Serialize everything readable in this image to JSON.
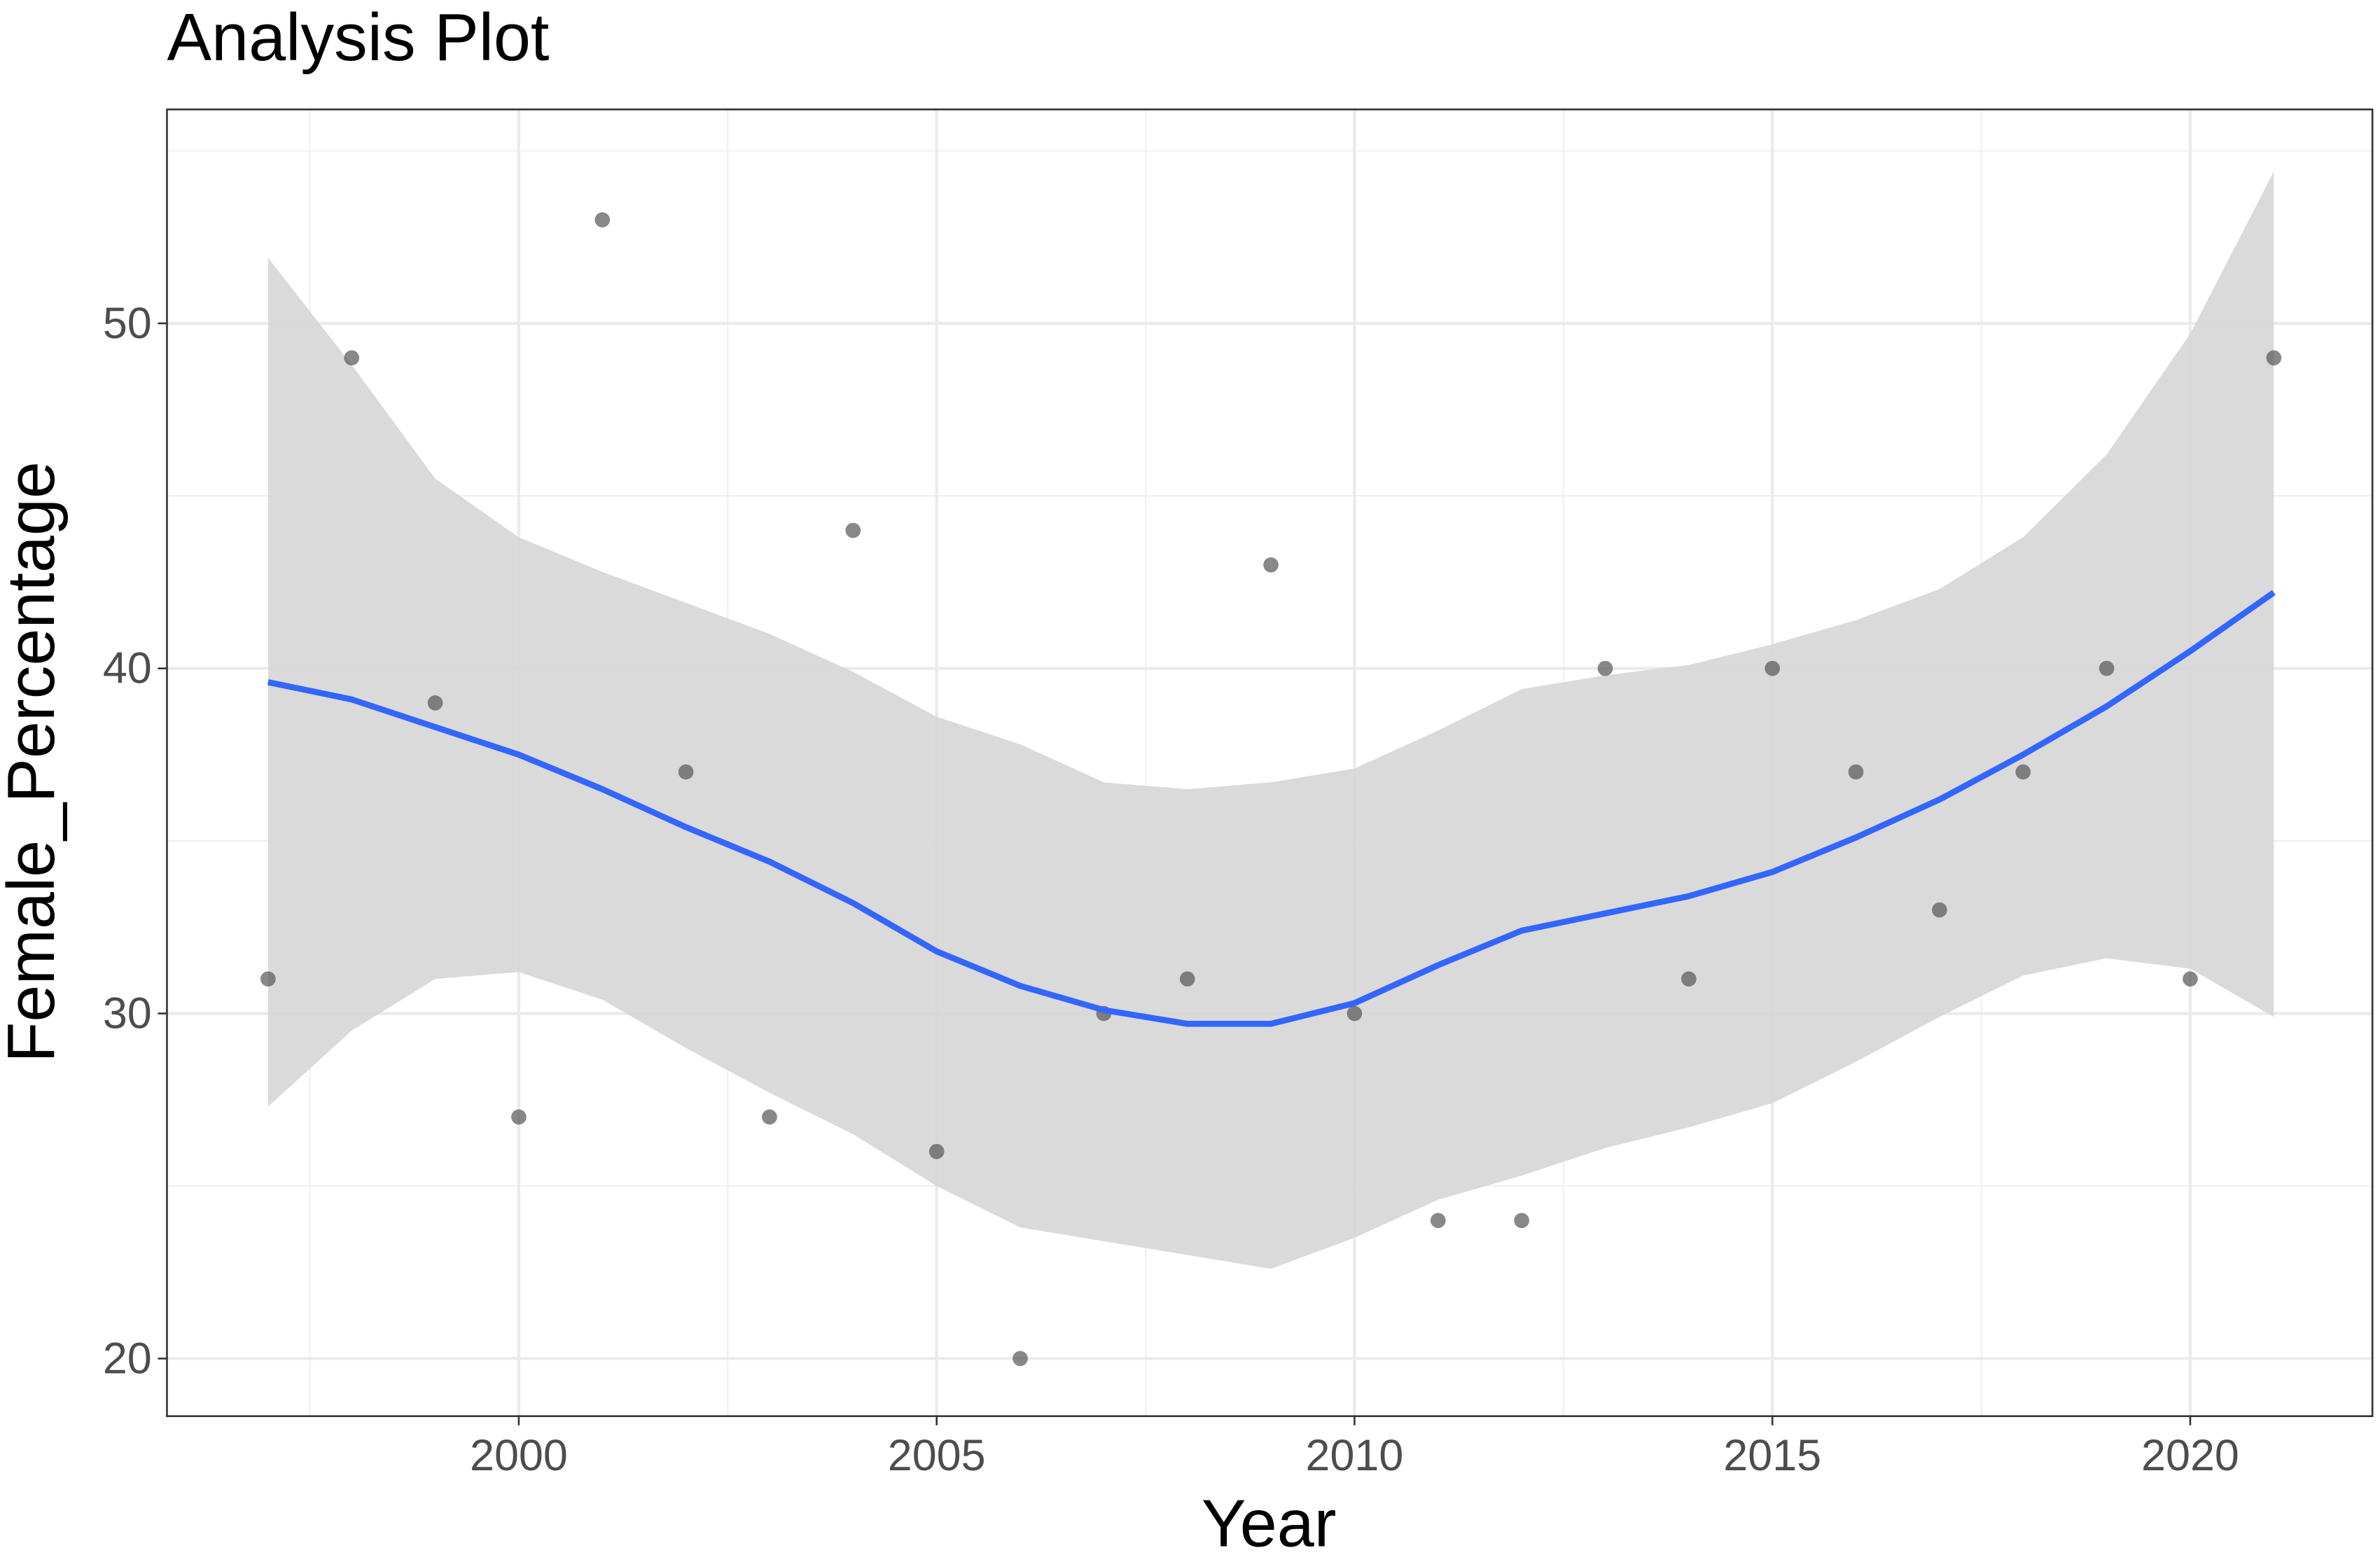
{
  "chart_data": {
    "type": "scatter",
    "title": "Analysis Plot",
    "x_label": "Year",
    "y_label": "Female_Percentage",
    "x": [
      1997,
      1998,
      1999,
      2000,
      2001,
      2002,
      2003,
      2004,
      2005,
      2006,
      2007,
      2008,
      2009,
      2010,
      2011,
      2012,
      2013,
      2014,
      2015,
      2016,
      2017,
      2018,
      2019,
      2020,
      2021
    ],
    "values": [
      31,
      49,
      39,
      27,
      53,
      37,
      27,
      44,
      26,
      20,
      30,
      31,
      43,
      30,
      24,
      24,
      40,
      31,
      40,
      37,
      33,
      37,
      40,
      31,
      49
    ],
    "color": "#555555",
    "smooth": {
      "color": "#3366ff",
      "band_color": "#d6d6d6",
      "values": [
        39.6,
        39.1,
        38.3,
        37.5,
        36.5,
        35.4,
        34.4,
        33.2,
        31.8,
        30.8,
        30.1,
        29.7,
        29.7,
        30.3,
        31.4,
        32.4,
        32.9,
        33.4,
        34.1,
        35.1,
        36.2,
        37.5,
        38.9,
        40.5,
        42.2
      ],
      "lower": [
        27.3,
        29.5,
        31.0,
        31.2,
        30.4,
        29.0,
        27.7,
        26.5,
        25.0,
        23.8,
        23.4,
        23.0,
        22.6,
        23.5,
        24.6,
        25.3,
        26.1,
        26.7,
        27.4,
        28.6,
        29.9,
        31.1,
        31.6,
        31.3,
        29.9
      ],
      "upper": [
        51.9,
        48.8,
        45.5,
        43.8,
        42.8,
        41.9,
        41.0,
        39.9,
        38.6,
        37.8,
        36.7,
        36.5,
        36.7,
        37.1,
        38.2,
        39.4,
        39.8,
        40.1,
        40.7,
        41.4,
        42.3,
        43.8,
        46.2,
        49.7,
        54.4
      ]
    },
    "xlim": [
      1995.79,
      2022.18
    ],
    "xticks": [
      2000,
      2005,
      2010,
      2015,
      2020
    ],
    "ylim": [
      18.33,
      56.2
    ],
    "yticks": [
      20,
      30,
      40,
      50
    ],
    "grid": true
  }
}
